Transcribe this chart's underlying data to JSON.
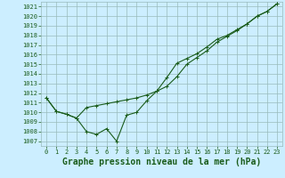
{
  "title": "Graphe pression niveau de la mer (hPa)",
  "bg_color": "#cceeff",
  "grid_color": "#99bbbb",
  "line_color": "#1a5c1a",
  "xlim": [
    -0.5,
    23.5
  ],
  "ylim": [
    1006.5,
    1021.5
  ],
  "yticks": [
    1007,
    1008,
    1009,
    1010,
    1011,
    1012,
    1013,
    1014,
    1015,
    1016,
    1017,
    1018,
    1019,
    1020,
    1021
  ],
  "xticks": [
    0,
    1,
    2,
    3,
    4,
    5,
    6,
    7,
    8,
    9,
    10,
    11,
    12,
    13,
    14,
    15,
    16,
    17,
    18,
    19,
    20,
    21,
    22,
    23
  ],
  "series1": [
    1011.5,
    1010.1,
    1009.8,
    1009.4,
    1008.0,
    1007.7,
    1008.3,
    1007.0,
    1009.7,
    1010.0,
    1011.2,
    1012.2,
    1013.6,
    1015.1,
    1015.6,
    1016.1,
    1016.8,
    1017.6,
    1018.0,
    1018.6,
    1019.2,
    1020.0,
    1020.5,
    1021.3
  ],
  "series2": [
    1011.5,
    1010.1,
    1009.8,
    1009.4,
    1010.5,
    1010.7,
    1010.9,
    1011.1,
    1011.3,
    1011.5,
    1011.8,
    1012.2,
    1012.7,
    1013.7,
    1015.0,
    1015.7,
    1016.4,
    1017.3,
    1017.9,
    1018.5,
    1019.2,
    1020.0,
    1020.5,
    1021.3
  ],
  "title_fontsize": 7,
  "tick_fontsize": 5,
  "ylabel_fontsize": 5,
  "xlabel_fontsize": 5
}
